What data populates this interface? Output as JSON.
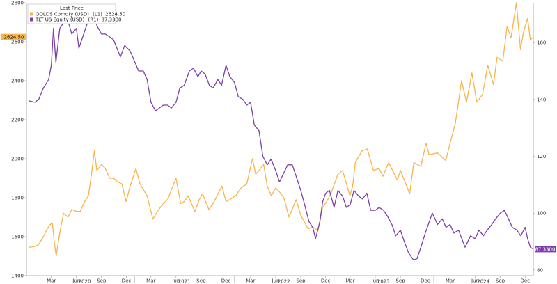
{
  "chart_data": {
    "type": "line",
    "legend": {
      "title": "Last Price",
      "placement": "top-left",
      "entries": [
        {
          "label": "GOLDS Comdty (USD)",
          "axis": "(L1)",
          "value": "2624.50"
        },
        {
          "label": "TLT US Equity (USD)",
          "axis": "(R1)",
          "value": "87.3300"
        }
      ]
    },
    "y_left": {
      "ticks": [
        "1400",
        "1600",
        "1800",
        "2000",
        "2200",
        "2400",
        "2600",
        "2800"
      ],
      "ylim": [
        1400,
        2800
      ]
    },
    "y_right": {
      "ticks": [
        "80",
        "100",
        "120",
        "140",
        "160"
      ],
      "ylim": [
        78,
        174
      ]
    },
    "x": {
      "range": [
        "2019-12-01",
        "2024-12-31"
      ],
      "month_ticks": [
        {
          "date": "2020-03-01",
          "label": "Mar"
        },
        {
          "date": "2020-06-01",
          "label": "Jun"
        },
        {
          "date": "2020-09-01",
          "label": "Sep"
        },
        {
          "date": "2020-12-01",
          "label": "Dec"
        },
        {
          "date": "2021-03-01",
          "label": "Mar"
        },
        {
          "date": "2021-06-01",
          "label": "Jun"
        },
        {
          "date": "2021-09-01",
          "label": "Sep"
        },
        {
          "date": "2021-12-01",
          "label": "Dec"
        },
        {
          "date": "2022-03-01",
          "label": "Mar"
        },
        {
          "date": "2022-06-01",
          "label": "Jun"
        },
        {
          "date": "2022-09-01",
          "label": "Sep"
        },
        {
          "date": "2022-12-01",
          "label": "Dec"
        },
        {
          "date": "2023-03-01",
          "label": "Mar"
        },
        {
          "date": "2023-06-01",
          "label": "Jun"
        },
        {
          "date": "2023-09-01",
          "label": "Sep"
        },
        {
          "date": "2023-12-01",
          "label": "Dec"
        },
        {
          "date": "2024-03-01",
          "label": "Mar"
        },
        {
          "date": "2024-06-01",
          "label": "Jun"
        },
        {
          "date": "2024-09-01",
          "label": "Sep"
        },
        {
          "date": "2024-12-01",
          "label": "Dec"
        }
      ],
      "year_labels": [
        {
          "date": "2020-07-01",
          "label": "2020"
        },
        {
          "date": "2021-07-01",
          "label": "2021"
        },
        {
          "date": "2022-07-01",
          "label": "2022"
        },
        {
          "date": "2023-07-01",
          "label": "2023"
        },
        {
          "date": "2024-07-01",
          "label": "2024"
        }
      ]
    },
    "series": [
      {
        "name": "GOLDS Comdty (USD)",
        "axis": "left",
        "color": "#f7b44a",
        "last_value_tag": "2624.50",
        "points": [
          [
            "2019-12-10",
            1545
          ],
          [
            "2020-01-01",
            1550
          ],
          [
            "2020-01-15",
            1560
          ],
          [
            "2020-02-01",
            1600
          ],
          [
            "2020-02-15",
            1640
          ],
          [
            "2020-02-24",
            1660
          ],
          [
            "2020-03-05",
            1670
          ],
          [
            "2020-03-12",
            1570
          ],
          [
            "2020-03-19",
            1500
          ],
          [
            "2020-04-01",
            1620
          ],
          [
            "2020-04-15",
            1720
          ],
          [
            "2020-05-01",
            1700
          ],
          [
            "2020-05-15",
            1740
          ],
          [
            "2020-06-01",
            1730
          ],
          [
            "2020-06-15",
            1730
          ],
          [
            "2020-07-01",
            1780
          ],
          [
            "2020-07-15",
            1810
          ],
          [
            "2020-07-27",
            1930
          ],
          [
            "2020-08-06",
            2040
          ],
          [
            "2020-08-15",
            1940
          ],
          [
            "2020-09-01",
            1970
          ],
          [
            "2020-09-15",
            1950
          ],
          [
            "2020-10-01",
            1900
          ],
          [
            "2020-10-15",
            1900
          ],
          [
            "2020-11-01",
            1880
          ],
          [
            "2020-11-15",
            1870
          ],
          [
            "2020-11-30",
            1780
          ],
          [
            "2020-12-15",
            1860
          ],
          [
            "2021-01-05",
            1950
          ],
          [
            "2021-01-20",
            1870
          ],
          [
            "2021-02-15",
            1810
          ],
          [
            "2021-03-08",
            1690
          ],
          [
            "2021-03-25",
            1730
          ],
          [
            "2021-04-15",
            1770
          ],
          [
            "2021-05-01",
            1790
          ],
          [
            "2021-05-15",
            1840
          ],
          [
            "2021-06-01",
            1900
          ],
          [
            "2021-06-18",
            1770
          ],
          [
            "2021-07-01",
            1780
          ],
          [
            "2021-07-15",
            1810
          ],
          [
            "2021-08-09",
            1730
          ],
          [
            "2021-08-25",
            1790
          ],
          [
            "2021-09-06",
            1820
          ],
          [
            "2021-09-29",
            1740
          ],
          [
            "2021-10-15",
            1770
          ],
          [
            "2021-11-16",
            1860
          ],
          [
            "2021-12-01",
            1780
          ],
          [
            "2021-12-15",
            1790
          ],
          [
            "2022-01-05",
            1810
          ],
          [
            "2022-01-25",
            1850
          ],
          [
            "2022-02-15",
            1870
          ],
          [
            "2022-03-08",
            2000
          ],
          [
            "2022-03-20",
            1920
          ],
          [
            "2022-04-18",
            1970
          ],
          [
            "2022-05-01",
            1860
          ],
          [
            "2022-05-16",
            1810
          ],
          [
            "2022-06-01",
            1850
          ],
          [
            "2022-06-15",
            1830
          ],
          [
            "2022-07-01",
            1800
          ],
          [
            "2022-07-20",
            1700
          ],
          [
            "2022-08-15",
            1790
          ],
          [
            "2022-09-01",
            1710
          ],
          [
            "2022-09-28",
            1640
          ],
          [
            "2022-10-15",
            1650
          ],
          [
            "2022-11-03",
            1630
          ],
          [
            "2022-11-20",
            1750
          ],
          [
            "2022-12-05",
            1780
          ],
          [
            "2022-12-20",
            1820
          ],
          [
            "2023-01-15",
            1920
          ],
          [
            "2023-02-01",
            1940
          ],
          [
            "2023-02-28",
            1810
          ],
          [
            "2023-03-10",
            1860
          ],
          [
            "2023-03-20",
            1980
          ],
          [
            "2023-04-13",
            2040
          ],
          [
            "2023-05-03",
            2050
          ],
          [
            "2023-05-25",
            1940
          ],
          [
            "2023-06-15",
            1950
          ],
          [
            "2023-06-29",
            1910
          ],
          [
            "2023-07-20",
            1980
          ],
          [
            "2023-08-21",
            1890
          ],
          [
            "2023-09-01",
            1940
          ],
          [
            "2023-10-05",
            1820
          ],
          [
            "2023-10-20",
            1980
          ],
          [
            "2023-11-15",
            1960
          ],
          [
            "2023-12-04",
            2080
          ],
          [
            "2023-12-15",
            2020
          ],
          [
            "2024-01-15",
            2030
          ],
          [
            "2024-02-14",
            1990
          ],
          [
            "2024-03-01",
            2080
          ],
          [
            "2024-03-20",
            2180
          ],
          [
            "2024-04-12",
            2400
          ],
          [
            "2024-04-30",
            2290
          ],
          [
            "2024-05-20",
            2440
          ],
          [
            "2024-06-07",
            2290
          ],
          [
            "2024-06-28",
            2330
          ],
          [
            "2024-07-17",
            2480
          ],
          [
            "2024-08-07",
            2380
          ],
          [
            "2024-08-20",
            2520
          ],
          [
            "2024-09-10",
            2500
          ],
          [
            "2024-09-26",
            2680
          ],
          [
            "2024-10-10",
            2620
          ],
          [
            "2024-10-30",
            2800
          ],
          [
            "2024-11-14",
            2560
          ],
          [
            "2024-11-25",
            2650
          ],
          [
            "2024-12-10",
            2720
          ],
          [
            "2024-12-20",
            2610
          ],
          [
            "2024-12-31",
            2624.5
          ]
        ]
      },
      {
        "name": "TLT US Equity (USD)",
        "axis": "right",
        "color": "#7b3fa8",
        "last_value_tag": "87.3300",
        "points": [
          [
            "2019-12-10",
            139.5
          ],
          [
            "2020-01-01",
            139
          ],
          [
            "2020-01-15",
            140
          ],
          [
            "2020-02-01",
            144
          ],
          [
            "2020-02-20",
            147
          ],
          [
            "2020-03-01",
            152
          ],
          [
            "2020-03-09",
            165
          ],
          [
            "2020-03-18",
            153
          ],
          [
            "2020-04-01",
            165
          ],
          [
            "2020-04-15",
            167
          ],
          [
            "2020-04-30",
            168
          ],
          [
            "2020-05-15",
            163
          ],
          [
            "2020-06-01",
            165
          ],
          [
            "2020-06-10",
            158
          ],
          [
            "2020-06-24",
            162
          ],
          [
            "2020-07-15",
            168
          ],
          [
            "2020-08-03",
            172
          ],
          [
            "2020-08-15",
            166
          ],
          [
            "2020-09-01",
            163
          ],
          [
            "2020-09-15",
            163
          ],
          [
            "2020-10-01",
            162
          ],
          [
            "2020-10-15",
            161
          ],
          [
            "2020-11-09",
            155
          ],
          [
            "2020-11-25",
            159
          ],
          [
            "2020-12-15",
            157
          ],
          [
            "2021-01-15",
            150
          ],
          [
            "2021-02-01",
            150
          ],
          [
            "2021-02-15",
            147
          ],
          [
            "2021-03-01",
            139
          ],
          [
            "2021-03-18",
            136
          ],
          [
            "2021-04-01",
            137
          ],
          [
            "2021-04-15",
            138
          ],
          [
            "2021-05-01",
            138
          ],
          [
            "2021-05-15",
            137
          ],
          [
            "2021-06-01",
            139
          ],
          [
            "2021-06-15",
            144
          ],
          [
            "2021-07-01",
            145
          ],
          [
            "2021-07-20",
            150
          ],
          [
            "2021-08-04",
            151
          ],
          [
            "2021-08-20",
            148
          ],
          [
            "2021-09-01",
            150
          ],
          [
            "2021-09-15",
            149
          ],
          [
            "2021-10-01",
            145
          ],
          [
            "2021-10-15",
            144
          ],
          [
            "2021-11-01",
            147
          ],
          [
            "2021-11-15",
            145
          ],
          [
            "2021-12-01",
            152
          ],
          [
            "2021-12-15",
            148
          ],
          [
            "2022-01-01",
            146
          ],
          [
            "2022-01-15",
            141
          ],
          [
            "2022-02-01",
            140
          ],
          [
            "2022-02-15",
            138
          ],
          [
            "2022-03-01",
            139
          ],
          [
            "2022-03-15",
            131
          ],
          [
            "2022-04-01",
            129
          ],
          [
            "2022-04-15",
            120
          ],
          [
            "2022-05-01",
            117
          ],
          [
            "2022-05-15",
            119
          ],
          [
            "2022-06-01",
            115
          ],
          [
            "2022-06-15",
            111
          ],
          [
            "2022-07-15",
            117
          ],
          [
            "2022-08-01",
            117
          ],
          [
            "2022-08-15",
            113
          ],
          [
            "2022-09-01",
            108
          ],
          [
            "2022-09-15",
            103
          ],
          [
            "2022-10-01",
            97
          ],
          [
            "2022-10-15",
            95
          ],
          [
            "2022-10-25",
            91
          ],
          [
            "2022-11-10",
            97
          ],
          [
            "2022-11-20",
            104
          ],
          [
            "2022-12-01",
            107
          ],
          [
            "2022-12-15",
            108
          ],
          [
            "2023-01-01",
            102
          ],
          [
            "2023-01-15",
            108
          ],
          [
            "2023-02-01",
            106
          ],
          [
            "2023-02-15",
            102
          ],
          [
            "2023-03-01",
            103
          ],
          [
            "2023-03-15",
            108
          ],
          [
            "2023-04-01",
            106
          ],
          [
            "2023-04-15",
            105
          ],
          [
            "2023-05-01",
            107
          ],
          [
            "2023-05-15",
            101
          ],
          [
            "2023-06-01",
            101
          ],
          [
            "2023-06-15",
            102
          ],
          [
            "2023-07-01",
            101
          ],
          [
            "2023-07-15",
            99
          ],
          [
            "2023-08-01",
            96
          ],
          [
            "2023-08-15",
            92
          ],
          [
            "2023-09-01",
            94
          ],
          [
            "2023-09-15",
            90
          ],
          [
            "2023-10-01",
            86
          ],
          [
            "2023-10-19",
            83.5
          ],
          [
            "2023-11-01",
            84
          ],
          [
            "2023-11-15",
            88
          ],
          [
            "2023-12-01",
            93
          ],
          [
            "2023-12-27",
            100
          ],
          [
            "2024-01-15",
            96
          ],
          [
            "2024-02-01",
            98
          ],
          [
            "2024-02-15",
            95
          ],
          [
            "2024-03-01",
            96
          ],
          [
            "2024-03-15",
            93
          ],
          [
            "2024-04-01",
            94
          ],
          [
            "2024-04-25",
            88
          ],
          [
            "2024-05-15",
            92
          ],
          [
            "2024-06-01",
            91
          ],
          [
            "2024-06-15",
            94
          ],
          [
            "2024-07-01",
            92
          ],
          [
            "2024-07-15",
            94
          ],
          [
            "2024-08-01",
            96
          ],
          [
            "2024-08-15",
            98
          ],
          [
            "2024-09-01",
            100
          ],
          [
            "2024-09-16",
            101
          ],
          [
            "2024-10-01",
            98
          ],
          [
            "2024-10-15",
            95
          ],
          [
            "2024-11-01",
            94
          ],
          [
            "2024-11-15",
            92
          ],
          [
            "2024-12-01",
            95
          ],
          [
            "2024-12-10",
            91
          ],
          [
            "2024-12-20",
            88
          ],
          [
            "2024-12-31",
            87.33
          ]
        ]
      }
    ]
  }
}
